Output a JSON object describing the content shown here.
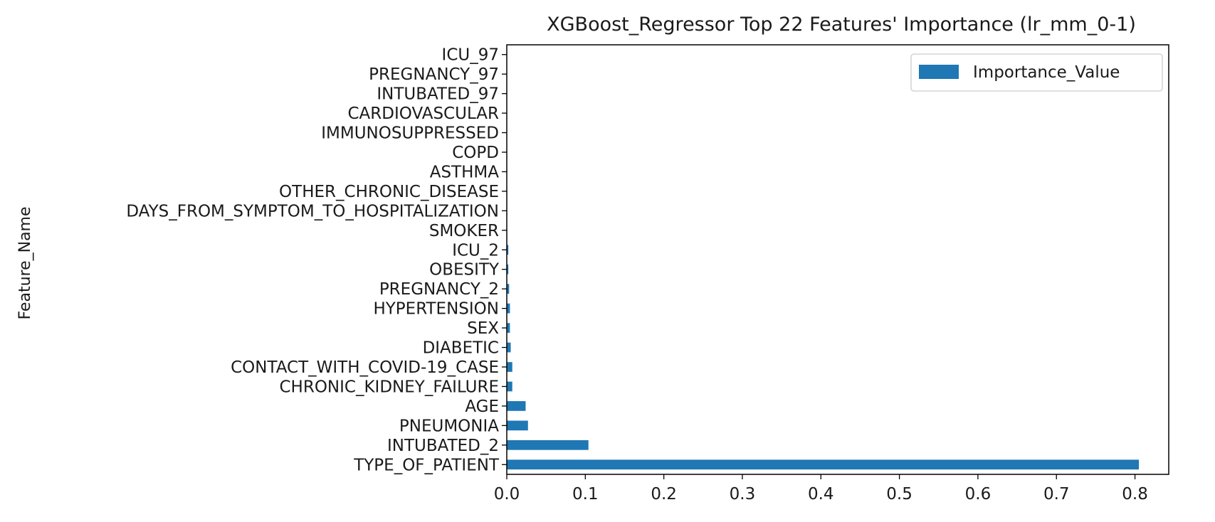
{
  "chart_data": {
    "type": "bar",
    "orientation": "horizontal",
    "title": "XGBoost_Regressor Top 22 Features' Importance (lr_mm_0-1)",
    "xlabel": "",
    "ylabel": "Feature_Name",
    "xlim": [
      0,
      0.843
    ],
    "xticks": [
      "0.0",
      "0.1",
      "0.2",
      "0.3",
      "0.4",
      "0.5",
      "0.6",
      "0.7",
      "0.8"
    ],
    "grid": false,
    "legend": {
      "position": "upper right",
      "entries": [
        "Importance_Value"
      ]
    },
    "bar_color": "#1f77b4",
    "series": [
      {
        "name": "Importance_Value",
        "categories": [
          "TYPE_OF_PATIENT",
          "INTUBATED_2",
          "PNEUMONIA",
          "AGE",
          "CHRONIC_KIDNEY_FAILURE",
          "CONTACT_WITH_COVID-19_CASE",
          "DIABETIC",
          "SEX",
          "HYPERTENSION",
          "PREGNANCY_2",
          "OBESITY",
          "ICU_2",
          "SMOKER",
          "DAYS_FROM_SYMPTOM_TO_HOSPITALIZATION",
          "OTHER_CHRONIC_DISEASE",
          "ASTHMA",
          "COPD",
          "IMMUNOSUPPRESSED",
          "CARDIOVASCULAR",
          "INTUBATED_97",
          "PREGNANCY_97",
          "ICU_97"
        ],
        "values": [
          0.805,
          0.104,
          0.027,
          0.024,
          0.007,
          0.007,
          0.005,
          0.004,
          0.004,
          0.003,
          0.002,
          0.002,
          0.0005,
          0.0005,
          0.0005,
          0.0004,
          0.0003,
          0.0003,
          0.0002,
          0.0,
          0.0,
          0.0
        ]
      }
    ]
  }
}
